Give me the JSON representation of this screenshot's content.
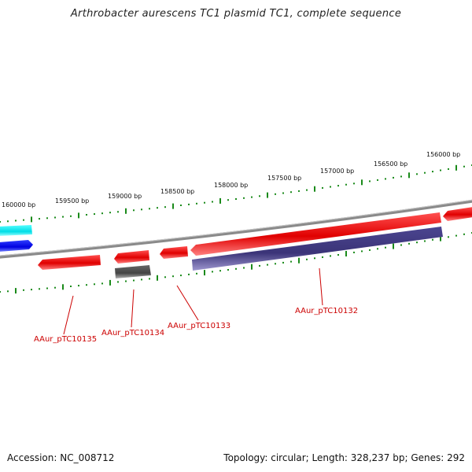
{
  "title": "Arthrobacter aurescens TC1 plasmid TC1, complete sequence",
  "footer": {
    "accession": "Accession: NC_008712",
    "summary": "Topology: circular; Length: 328,237 bp; Genes: 292"
  },
  "scale_labels": [
    "160000 bp",
    "159500 bp",
    "159000 bp",
    "158500 bp",
    "158000 bp",
    "157500 bp",
    "157000 bp",
    "156500 bp",
    "156000 bp"
  ],
  "gene_labels": [
    "AAur_pTC10135",
    "AAur_pTC10134",
    "AAur_pTC10133",
    "AAur_pTC10132"
  ],
  "colors": {
    "backbone": "#808080",
    "tick": "#1a8a1a",
    "forward_gene": "#ee0000",
    "reverse_gene": "#3d3580",
    "pseudo_gene": "#555555",
    "cyan_gene": "#00e5ee",
    "blue_gene": "#0000ee",
    "label": "#cc0000"
  }
}
